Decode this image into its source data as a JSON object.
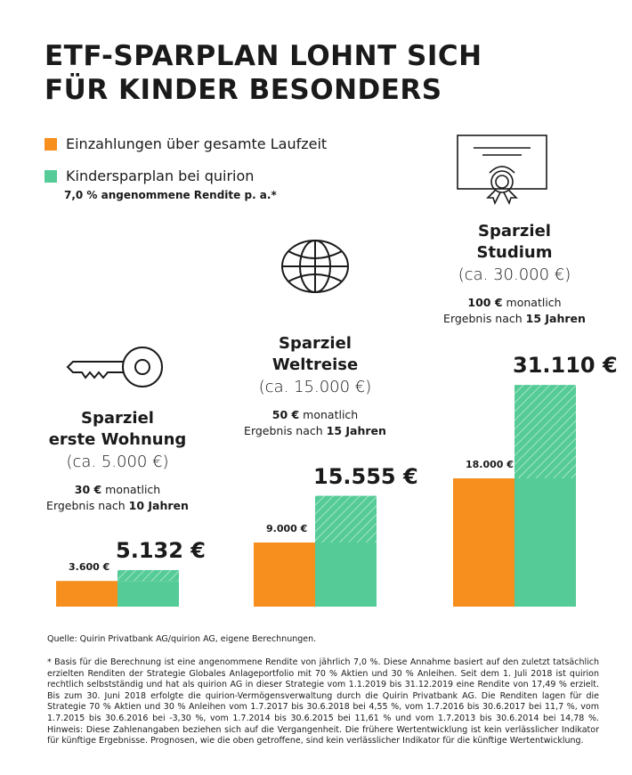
{
  "title_lines": [
    "ETF-SPARPLAN LOHNT SICH",
    "FÜR KINDER BESONDERS"
  ],
  "legend": {
    "items": [
      {
        "label": "Einzahlungen über gesamte Laufzeit",
        "color": "#f78f1e"
      },
      {
        "label": "Kindersparplan bei quirion",
        "color": "#55cb97"
      }
    ],
    "note": "7,0 % angenommene Rendite p. a.*"
  },
  "groups": [
    {
      "icon": "key-icon",
      "title1": "Sparziel",
      "title2": "erste Wohnung",
      "goal": "(ca. 5.000 €)",
      "monthly_amount": "30 €",
      "monthly_label": " monatlich",
      "result_prefix": "Ergebnis nach ",
      "result_years": "10 Jahren"
    },
    {
      "icon": "globe-icon",
      "title1": "Sparziel",
      "title2": "Weltreise",
      "goal": "(ca. 15.000 €)",
      "monthly_amount": "50 €",
      "monthly_label": " monatlich",
      "result_prefix": "Ergebnis nach ",
      "result_years": "15 Jahren"
    },
    {
      "icon": "certificate-icon",
      "title1": "Sparziel",
      "title2": "Studium",
      "goal": "(ca. 30.000 €)",
      "monthly_amount": "100 €",
      "monthly_label": " monatlich",
      "result_prefix": "Ergebnis nach ",
      "result_years": "15 Jahren"
    }
  ],
  "chart_data": {
    "type": "bar",
    "categories": [
      "Sparziel erste Wohnung",
      "Sparziel Weltreise",
      "Sparziel Studium"
    ],
    "series": [
      {
        "name": "Einzahlungen über gesamte Laufzeit",
        "values": [
          3600,
          9000,
          18000
        ],
        "labels": [
          "3.600 €",
          "9.000 €",
          "18.000 €"
        ],
        "color": "#f78f1e"
      },
      {
        "name": "Kindersparplan bei quirion",
        "values": [
          5132,
          15555,
          31110
        ],
        "labels": [
          "5.132 €",
          "15.555 €",
          "31.110 €"
        ],
        "color": "#55cb97"
      }
    ],
    "ylim": [
      0,
      31110
    ],
    "grid": false
  },
  "source": "Quelle: Quirin Privatbank AG/quirion AG, eigene Berechnungen.",
  "footnote": "* Basis für die Berechnung ist eine angenommene Rendite von jährlich 7,0 %. Diese Annahme basiert auf den zuletzt tatsächlich erzielten Renditen der Strategie Globales Anlageportfolio mit 70 % Aktien und 30 % Anleihen. Seit dem 1. Juli 2018 ist quirion rechtlich selbstständig und hat als quirion AG in dieser Strategie vom 1.1.2019 bis 31.12.2019 eine Rendite von 17,49 % erzielt. Bis zum 30. Juni 2018 erfolgte die quirion-Vermögensverwaltung durch die Quirin Privatbank AG. Die Renditen lagen für die Strategie 70 % Aktien und 30 % Anleihen vom 1.7.2017 bis 30.6.2018 bei 4,55 %, vom 1.7.2016 bis 30.6.2017 bei 11,7 %, vom 1.7.2015 bis 30.6.2016 bei -3,30 %, vom 1.7.2014 bis 30.6.2015 bei 11,61 % und vom 1.7.2013 bis 30.6.2014 bei 14,78 %. Hinweis: Diese Zahlenangaben beziehen sich auf die Vergangenheit. Die frühere Wertentwicklung ist kein verlässlicher Indikator für künftige Ergebnisse. Prognosen, wie die oben getroffene, sind kein verlässlicher Indikator für die künftige Wertentwicklung."
}
